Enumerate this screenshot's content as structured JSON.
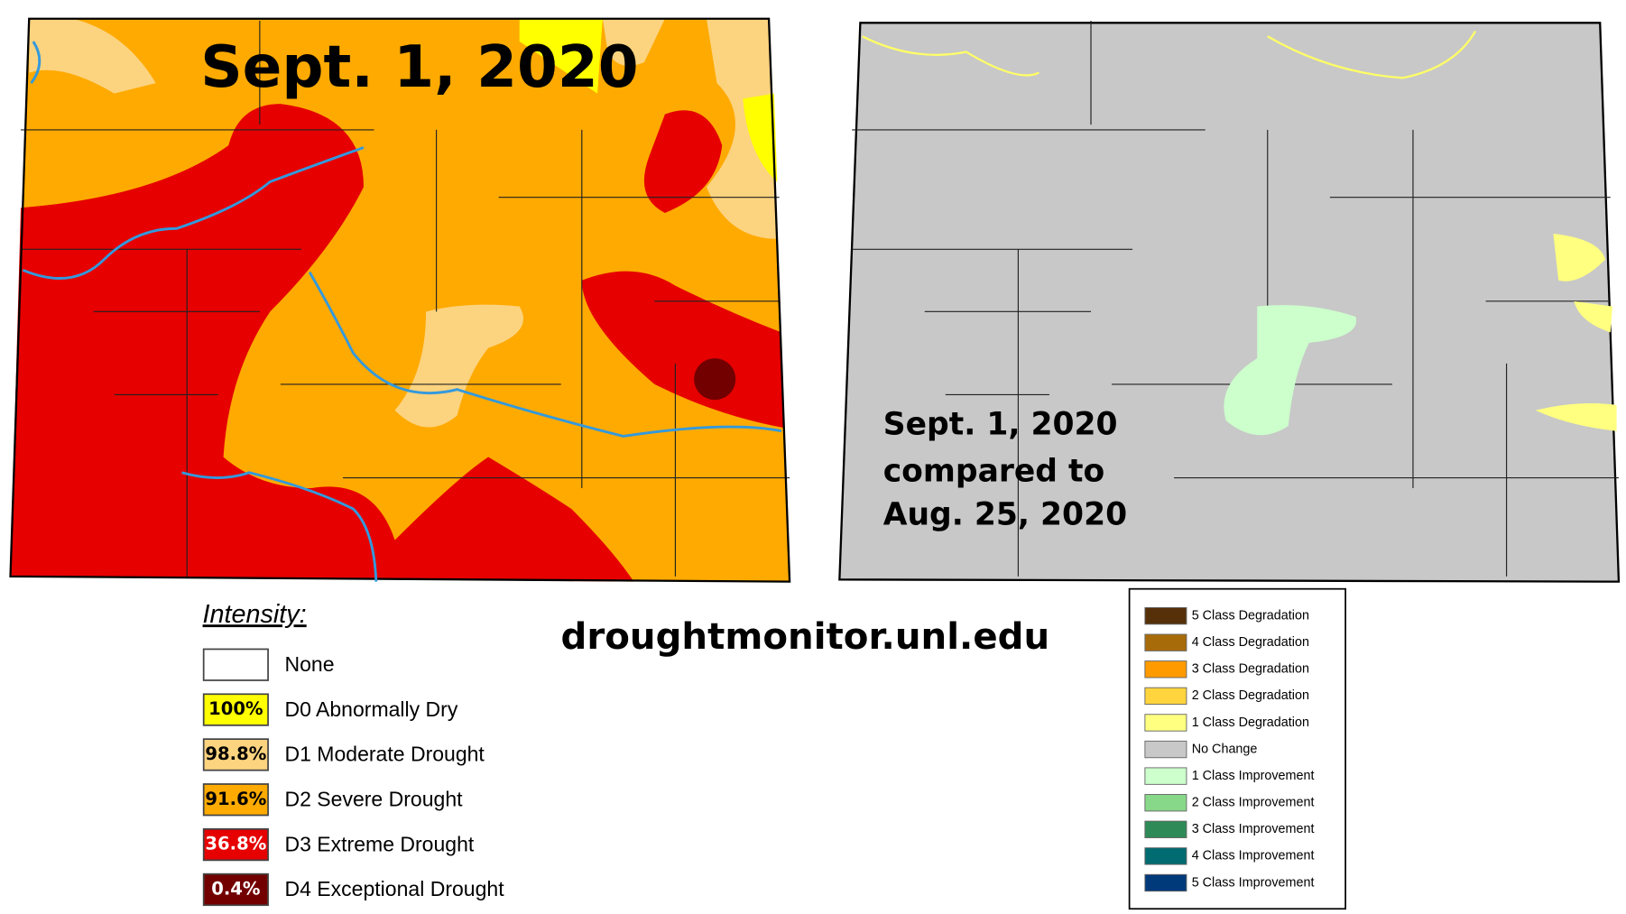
{
  "left_map": {
    "title": "Sept. 1, 2020"
  },
  "right_map": {
    "caption": [
      "Sept. 1, 2020",
      "compared to",
      "Aug. 25, 2020"
    ]
  },
  "source": "droughtmonitor.unl.edu",
  "intensity_legend": {
    "title": "Intensity:",
    "items": [
      {
        "label": "None",
        "color": "#ffffff"
      },
      {
        "label": "D0 Abnormally Dry",
        "percent": "100%",
        "color": "#ffff00",
        "text_color": "#000000"
      },
      {
        "label": "D1 Moderate Drought",
        "percent": "98.8%",
        "color": "#fcd37f",
        "text_color": "#000000"
      },
      {
        "label": "D2 Severe Drought",
        "percent": "91.6%",
        "color": "#ffaa00",
        "text_color": "#000000"
      },
      {
        "label": "D3 Extreme Drought",
        "percent": "36.8%",
        "color": "#e60000",
        "text_color": "#ffffff"
      },
      {
        "label": "D4 Exceptional Drought",
        "percent": "0.4%",
        "color": "#730000",
        "text_color": "#ffffff"
      }
    ]
  },
  "change_legend": {
    "items": [
      {
        "label": "5 Class Degradation",
        "color": "#553009"
      },
      {
        "label": "4 Class Degradation",
        "color": "#a86b0a"
      },
      {
        "label": "3 Class Degradation",
        "color": "#ff9a00"
      },
      {
        "label": "2 Class Degradation",
        "color": "#ffd43c"
      },
      {
        "label": "1 Class Degradation",
        "color": "#ffff80"
      },
      {
        "label": "No Change",
        "color": "#c8c8c8"
      },
      {
        "label": "1 Class Improvement",
        "color": "#ccffcc"
      },
      {
        "label": "2 Class Improvement",
        "color": "#88d88a"
      },
      {
        "label": "3 Class Improvement",
        "color": "#2e8b57"
      },
      {
        "label": "4 Class Improvement",
        "color": "#006b70"
      },
      {
        "label": "5 Class Improvement",
        "color": "#003a7a"
      }
    ]
  }
}
